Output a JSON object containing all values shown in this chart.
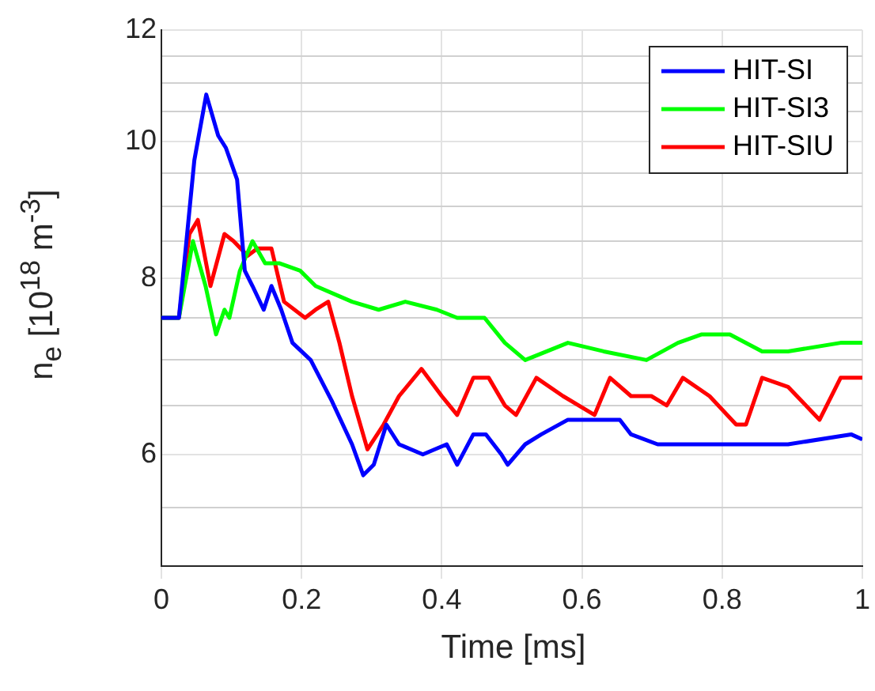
{
  "chart_data": {
    "type": "line",
    "xlabel": "Time [ms]",
    "ylabel": "n$_{e}$ [10$^{18}$ m$^{-3}$]",
    "log": "y",
    "grid": true,
    "legend": "top right",
    "line_style": "solid",
    "marker": "none",
    "xlim": [
      0,
      1
    ],
    "xticks": [
      0,
      0.2,
      0.4,
      0.6,
      0.8,
      1
    ],
    "ylim": [
      5,
      12
    ],
    "yticks": [
      {
        "value": 5.5,
        "label": null
      },
      6,
      {
        "value": 6.5,
        "label": null
      },
      {
        "value": 7,
        "label": null
      },
      {
        "value": 7.5,
        "label": null
      },
      8,
      {
        "value": 8.5,
        "label": null
      },
      {
        "value": 9,
        "label": null
      },
      {
        "value": 9.5,
        "label": null
      },
      10,
      {
        "value": 10.5,
        "label": null
      },
      {
        "value": 11,
        "label": null
      },
      {
        "value": 11.5,
        "label": null
      },
      12
    ],
    "series": [
      {
        "name": "HIT-SI",
        "color": "#0000ff",
        "x": [
          0,
          0.025,
          0.047,
          0.064,
          0.081,
          0.092,
          0.108,
          0.119,
          0.13,
          0.146,
          0.157,
          0.171,
          0.187,
          0.213,
          0.243,
          0.272,
          0.288,
          0.303,
          0.321,
          0.339,
          0.373,
          0.407,
          0.422,
          0.445,
          0.463,
          0.485,
          0.494,
          0.519,
          0.542,
          0.58,
          0.609,
          0.654,
          0.67,
          0.708,
          0.745,
          0.82,
          0.894,
          0.984,
          1
        ],
        "values": [
          7.5,
          7.5,
          9.7,
          10.8,
          10.1,
          9.9,
          9.4,
          8.1,
          7.9,
          7.6,
          7.9,
          7.6,
          7.2,
          7,
          6.55,
          6.1,
          5.8,
          5.9,
          6.3,
          6.1,
          6,
          6.1,
          5.9,
          6.2,
          6.2,
          6,
          5.9,
          6.1,
          6.2,
          6.35,
          6.35,
          6.35,
          6.2,
          6.1,
          6.1,
          6.1,
          6.1,
          6.2,
          6.15
        ]
      },
      {
        "name": "HIT-SI3",
        "color": "#00ff00",
        "x": [
          0,
          0.025,
          0.045,
          0.063,
          0.078,
          0.09,
          0.097,
          0.112,
          0.13,
          0.148,
          0.168,
          0.198,
          0.22,
          0.272,
          0.31,
          0.348,
          0.393,
          0.422,
          0.438,
          0.461,
          0.49,
          0.519,
          0.58,
          0.631,
          0.692,
          0.737,
          0.771,
          0.811,
          0.857,
          0.894,
          0.969,
          1
        ],
        "values": [
          7.5,
          7.5,
          8.5,
          7.9,
          7.3,
          7.6,
          7.5,
          8.1,
          8.5,
          8.2,
          8.2,
          8.1,
          7.9,
          7.7,
          7.6,
          7.7,
          7.6,
          7.5,
          7.5,
          7.5,
          7.2,
          7,
          7.2,
          7.1,
          7,
          7.2,
          7.3,
          7.3,
          7.1,
          7.1,
          7.2,
          7.2
        ]
      },
      {
        "name": "HIT-SIU",
        "color": "#ff0000",
        "x": [
          0,
          0.025,
          0.04,
          0.052,
          0.07,
          0.09,
          0.103,
          0.123,
          0.137,
          0.157,
          0.175,
          0.205,
          0.22,
          0.238,
          0.254,
          0.272,
          0.294,
          0.317,
          0.339,
          0.371,
          0.4,
          0.422,
          0.445,
          0.467,
          0.49,
          0.506,
          0.535,
          0.573,
          0.618,
          0.64,
          0.67,
          0.699,
          0.721,
          0.744,
          0.782,
          0.82,
          0.834,
          0.857,
          0.894,
          0.939,
          0.969,
          1
        ],
        "values": [
          7.5,
          7.5,
          8.6,
          8.8,
          7.9,
          8.6,
          8.5,
          8.3,
          8.4,
          8.4,
          7.7,
          7.5,
          7.6,
          7.7,
          7.2,
          6.6,
          6.05,
          6.3,
          6.6,
          6.9,
          6.6,
          6.4,
          6.8,
          6.8,
          6.5,
          6.4,
          6.8,
          6.6,
          6.4,
          6.8,
          6.6,
          6.6,
          6.5,
          6.8,
          6.6,
          6.3,
          6.3,
          6.8,
          6.7,
          6.35,
          6.8,
          6.8
        ]
      }
    ]
  }
}
